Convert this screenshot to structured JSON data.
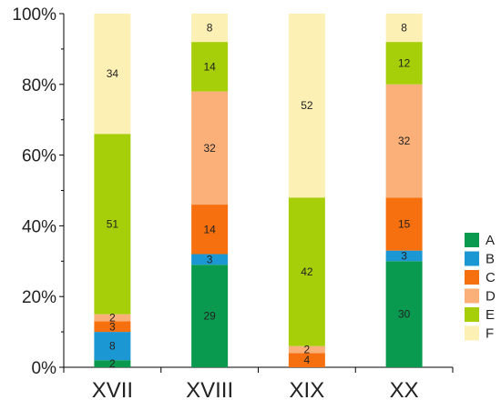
{
  "chart_data": {
    "type": "bar",
    "stacked": true,
    "categories": [
      "XVII",
      "XVIII",
      "XIX",
      "XX"
    ],
    "ylim": [
      0,
      100
    ],
    "y_ticks": [
      "0%",
      "20%",
      "40%",
      "60%",
      "80%",
      "100%"
    ],
    "legend_position": "right",
    "series": [
      {
        "name": "A",
        "color": "#0a9a4f",
        "values": [
          2,
          29,
          0,
          30
        ],
        "labels": [
          "2",
          "29",
          "",
          "30"
        ]
      },
      {
        "name": "B",
        "color": "#1b97d3",
        "values": [
          8,
          3,
          0,
          3
        ],
        "labels": [
          "8",
          "3",
          "",
          "3"
        ]
      },
      {
        "name": "C",
        "color": "#f6700f",
        "values": [
          3,
          14,
          4,
          15
        ],
        "labels": [
          "3",
          "14",
          "4",
          "15"
        ]
      },
      {
        "name": "D",
        "color": "#fbb07a",
        "values": [
          2,
          32,
          2,
          32
        ],
        "labels": [
          "2",
          "32",
          "2",
          "32"
        ]
      },
      {
        "name": "E",
        "color": "#a6cf0a",
        "values": [
          51,
          14,
          42,
          12
        ],
        "labels": [
          "51",
          "14",
          "42",
          "12"
        ]
      },
      {
        "name": "F",
        "color": "#fcf0b4",
        "values": [
          34,
          8,
          52,
          8
        ],
        "labels": [
          "34",
          "8",
          "52",
          "8"
        ]
      }
    ]
  }
}
